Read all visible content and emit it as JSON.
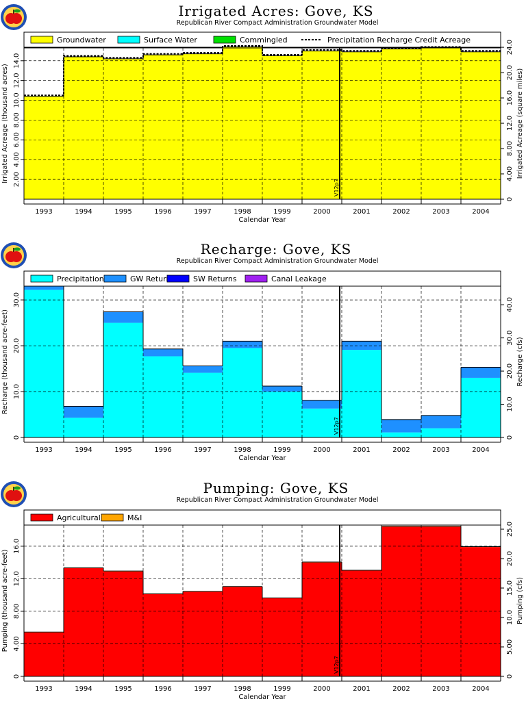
{
  "chart_data": [
    {
      "type": "area",
      "title": "Irrigated Acres: Gove, KS",
      "subtitle": "Republican River Compact Administration Groundwater Model",
      "xlabel": "Calendar Year",
      "ylabel": "Irrigated Acreage (thousand acres)",
      "ylabel2": "Irrigated Acreage (square miles)",
      "categories": [
        "1993",
        "1994",
        "1995",
        "1996",
        "1997",
        "1998",
        "1999",
        "2000",
        "2001",
        "2002",
        "2003",
        "2004"
      ],
      "ylim": [
        0,
        15.3
      ],
      "yticks": [
        "2.00",
        "4.00",
        "6.00",
        "8.00",
        "10.0",
        "12.0",
        "14.0"
      ],
      "ytick_values": [
        2,
        4,
        6,
        8,
        10,
        12,
        14
      ],
      "y2lim": [
        0,
        23.9
      ],
      "y2ticks": [
        "0",
        "4.00",
        "8.00",
        "12.0",
        "16.0",
        "20.0",
        "24.0"
      ],
      "y2tick_values": [
        0,
        4,
        8,
        12,
        16,
        20,
        24
      ],
      "marker_label": "V12p7",
      "marker_at": "2001",
      "series": [
        {
          "name": "Groundwater",
          "color": "#ffff00",
          "values": [
            10.4,
            14.4,
            14.2,
            14.6,
            14.7,
            15.4,
            14.5,
            15.0,
            14.9,
            15.2,
            15.3,
            14.9
          ]
        },
        {
          "name": "Surface Water",
          "color": "#00ffff",
          "values": [
            0,
            0,
            0,
            0,
            0,
            0,
            0,
            0,
            0,
            0,
            0,
            0
          ]
        },
        {
          "name": "Commingled",
          "color": "#00e000",
          "values": [
            0,
            0,
            0,
            0,
            0,
            0,
            0,
            0,
            0,
            0,
            0,
            0
          ]
        },
        {
          "name": "Precipitation Recharge Credit Acreage",
          "style": "dashed",
          "color": "#000000",
          "values": [
            10.4,
            14.4,
            14.2,
            14.6,
            14.7,
            15.4,
            14.5,
            15.0,
            14.9,
            15.2,
            15.3,
            14.9
          ]
        }
      ]
    },
    {
      "type": "area",
      "title": "Recharge: Gove, KS",
      "subtitle": "Republican River Compact Administration Groundwater Model",
      "xlabel": "Calendar Year",
      "ylabel": "Recharge (thousand acre-feet)",
      "ylabel2": "Recharge (cfs)",
      "categories": [
        "1993",
        "1994",
        "1995",
        "1996",
        "1997",
        "1998",
        "1999",
        "2000",
        "2001",
        "2002",
        "2003",
        "2004"
      ],
      "ylim": [
        0,
        33
      ],
      "yticks": [
        "0",
        "10.0",
        "20.0",
        "30.0"
      ],
      "ytick_values": [
        0,
        10,
        20,
        30
      ],
      "y2lim": [
        0,
        45.6
      ],
      "y2ticks": [
        "0",
        "10.0",
        "20.0",
        "30.0",
        "40.0"
      ],
      "y2tick_values": [
        0,
        10,
        20,
        30,
        40
      ],
      "marker_label": "V12p7",
      "marker_at": "2001",
      "series": [
        {
          "name": "Precipitation",
          "color": "#00ffff",
          "values": [
            32.2,
            4.3,
            25.0,
            17.7,
            14.1,
            19.5,
            10.0,
            6.3,
            19.1,
            1.1,
            2.0,
            13.0
          ]
        },
        {
          "name": "GW Returns",
          "color": "#1e90ff",
          "values": [
            0.8,
            2.5,
            2.4,
            1.6,
            1.5,
            1.5,
            1.2,
            1.8,
            1.9,
            2.8,
            2.8,
            2.3
          ]
        },
        {
          "name": "SW Returns",
          "color": "#0000ff",
          "values": [
            0,
            0,
            0,
            0,
            0,
            0,
            0,
            0,
            0,
            0,
            0,
            0
          ]
        },
        {
          "name": "Canal Leakage",
          "color": "#a020f0",
          "values": [
            0,
            0,
            0,
            0,
            0,
            0,
            0,
            0,
            0,
            0,
            0,
            0
          ]
        }
      ]
    },
    {
      "type": "area",
      "title": "Pumping: Gove, KS",
      "subtitle": "Republican River Compact Administration Groundwater Model",
      "xlabel": "Calendar Year",
      "ylabel": "Pumping (thousand acre-feet)",
      "ylabel2": "Pumping (cfs)",
      "categories": [
        "1993",
        "1994",
        "1995",
        "1996",
        "1997",
        "1998",
        "1999",
        "2000",
        "2001",
        "2002",
        "2003",
        "2004"
      ],
      "ylim": [
        0,
        18.6
      ],
      "yticks": [
        "0",
        "4.00",
        "8.00",
        "12.0",
        "16.0"
      ],
      "ytick_values": [
        0,
        4,
        8,
        12,
        16
      ],
      "y2lim": [
        0,
        25.7
      ],
      "y2ticks": [
        "0",
        "5.00",
        "10.0",
        "15.0",
        "20.0",
        "25.0"
      ],
      "y2tick_values": [
        0,
        5,
        10,
        15,
        20,
        25
      ],
      "marker_label": "V12p7",
      "marker_at": "2001",
      "series": [
        {
          "name": "Agricultural",
          "color": "#ff0000",
          "values": [
            5.4,
            13.3,
            12.9,
            10.1,
            10.4,
            11.0,
            9.6,
            14.0,
            13.0,
            18.4,
            18.4,
            15.9
          ]
        },
        {
          "name": "M&I",
          "color": "#ffa500",
          "values": [
            0.05,
            0.05,
            0.05,
            0.05,
            0.05,
            0.05,
            0.05,
            0.05,
            0.05,
            0.05,
            0.05,
            0.05
          ]
        }
      ]
    }
  ]
}
